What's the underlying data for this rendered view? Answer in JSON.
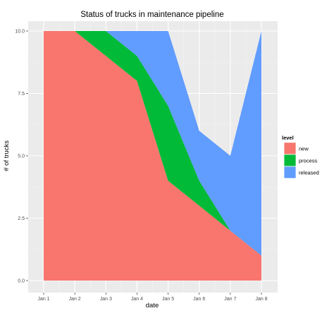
{
  "chart_data": {
    "type": "area",
    "stacked": true,
    "title": "Status of trucks in maintenance pipeline",
    "xlabel": "date",
    "ylabel": "# of trucks",
    "x": [
      "Jan 1",
      "Jan 2",
      "Jan 3",
      "Jan 4",
      "Jan 5",
      "Jan 6",
      "Jan 7",
      "Jan 8"
    ],
    "ylim": [
      0,
      10
    ],
    "yticks": [
      "0.0",
      "2.5",
      "5.0",
      "7.5",
      "10.0"
    ],
    "grid": true,
    "legend": {
      "title": "level",
      "placement": "right"
    },
    "series": [
      {
        "name": "new",
        "color": "#F8766D",
        "values": [
          10,
          10,
          9,
          8,
          4,
          3,
          2,
          1
        ]
      },
      {
        "name": "process",
        "color": "#00BA38",
        "values": [
          0,
          0,
          1,
          1,
          3,
          1,
          0,
          0
        ]
      },
      {
        "name": "released",
        "color": "#619CFF",
        "values": [
          0,
          0,
          0,
          1,
          3,
          2,
          3,
          9
        ]
      }
    ]
  },
  "colors": {
    "panel_background": "#EBEBEB",
    "grid_major": "#FFFFFF",
    "grid_minor": "#F5F5F5"
  }
}
